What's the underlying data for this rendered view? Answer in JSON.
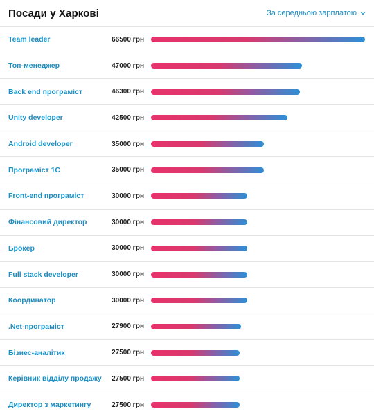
{
  "header": {
    "title": "Посади у Харкові",
    "sort_label": "За середньою зарплатою"
  },
  "colors": {
    "bar_start": "#e8326b",
    "bar_end": "#2d8fd6",
    "link": "#1a8fc4"
  },
  "chart_data": {
    "type": "bar",
    "orientation": "horizontal",
    "title": "Посади у Харкові",
    "unit": "грн",
    "grid": false,
    "categories": [
      "Team leader",
      "Топ-менеджер",
      "Back end програміст",
      "Unity developer",
      "Android developer",
      "Програміст 1С",
      "Front-end програміст",
      "Фінансовий директор",
      "Брокер",
      "Full stack developer",
      "Координатор",
      ".Net-програміст",
      "Бізнес-аналітик",
      "Керівник відділу продажу",
      "Директор з маркетингу"
    ],
    "values": [
      66500,
      47000,
      46300,
      42500,
      35000,
      35000,
      30000,
      30000,
      30000,
      30000,
      30000,
      27900,
      27500,
      27500,
      27500
    ],
    "value_labels": [
      "66500 грн",
      "47000 грн",
      "46300 грн",
      "42500 грн",
      "35000 грн",
      "35000 грн",
      "30000 грн",
      "30000 грн",
      "30000 грн",
      "30000 грн",
      "30000 грн",
      "27900 грн",
      "27500 грн",
      "27500 грн",
      "27500 грн"
    ],
    "xlim": [
      0,
      66500
    ]
  }
}
